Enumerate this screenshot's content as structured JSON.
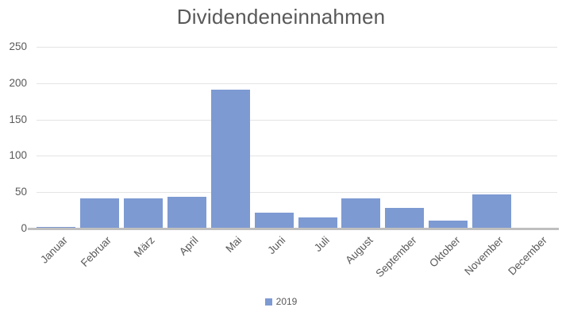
{
  "title": "Dividendeneinnahmen",
  "legend": {
    "label": "2019"
  },
  "colors": {
    "bar": "#7d9ad2",
    "gridline": "#e4e4e4",
    "axis_line": "#bfbfbf",
    "text": "#595959",
    "background": "#ffffff"
  },
  "chart_data": {
    "type": "bar",
    "title": "Dividendeneinnahmen",
    "categories": [
      "Januar",
      "Februar",
      "März",
      "April",
      "Mai",
      "Juni",
      "Juli",
      "August",
      "September",
      "Oktober",
      "November",
      "December"
    ],
    "series": [
      {
        "name": "2019",
        "values": [
          2,
          41,
          41,
          44,
          191,
          22,
          15,
          42,
          28,
          11,
          47,
          0
        ]
      }
    ],
    "xlabel": "",
    "ylabel": "",
    "ylim": [
      0,
      250
    ],
    "yticks": [
      0,
      50,
      100,
      150,
      200,
      250
    ],
    "grid": true,
    "legend_position": "bottom",
    "x_label_rotation_deg": 45
  }
}
